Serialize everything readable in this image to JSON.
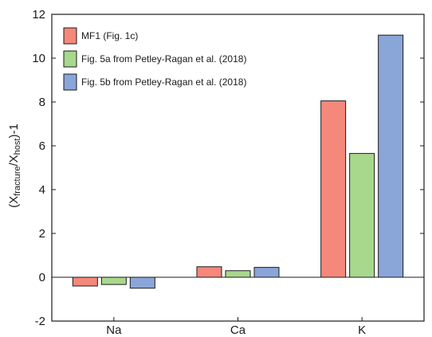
{
  "chart_data": {
    "type": "bar",
    "title": "",
    "xlabel": "",
    "ylabel": {
      "prefix": "(X",
      "sub1": "fracture",
      "mid": "/X",
      "sub2": "host",
      "suffix": ")-1"
    },
    "categories": [
      "Na",
      "Ca",
      "K"
    ],
    "series": [
      {
        "name": "MF1 (Fig. 1c)",
        "values": [
          -0.4,
          0.48,
          8.05
        ],
        "color": "#f4887a"
      },
      {
        "name": "Fig. 5a from Petley-Ragan et al. (2018)",
        "values": [
          -0.33,
          0.3,
          5.65
        ],
        "color": "#a8d88c"
      },
      {
        "name": "Fig. 5b from Petley-Ragan et al. (2018)",
        "values": [
          -0.5,
          0.45,
          11.05
        ],
        "color": "#8aa6d8"
      }
    ],
    "ylim": [
      -2,
      12
    ],
    "yticks": [
      "-2",
      "0",
      "2",
      "4",
      "6",
      "8",
      "10",
      "12"
    ],
    "grid": false,
    "legend_position": "top-left"
  }
}
